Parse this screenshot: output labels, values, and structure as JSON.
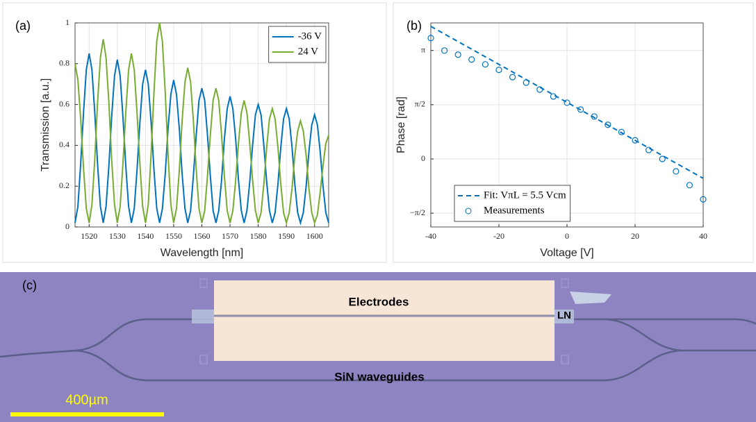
{
  "chart_data": [
    {
      "type": "line",
      "panel_label": "(a)",
      "xlabel": "Wavelength [nm]",
      "ylabel": "Transmission [a.u.]",
      "x": [
        1515,
        1516,
        1517,
        1518,
        1519,
        1520,
        1521,
        1522,
        1523,
        1524,
        1525,
        1526,
        1527,
        1528,
        1529,
        1530,
        1531,
        1532,
        1533,
        1534,
        1535,
        1536,
        1537,
        1538,
        1539,
        1540,
        1541,
        1542,
        1543,
        1544,
        1545,
        1546,
        1547,
        1548,
        1549,
        1550,
        1551,
        1552,
        1553,
        1554,
        1555,
        1556,
        1557,
        1558,
        1559,
        1560,
        1561,
        1562,
        1563,
        1564,
        1565,
        1566,
        1567,
        1568,
        1569,
        1570,
        1571,
        1572,
        1573,
        1574,
        1575,
        1576,
        1577,
        1578,
        1579,
        1580,
        1581,
        1582,
        1583,
        1584,
        1585,
        1586,
        1587,
        1588,
        1589,
        1590,
        1591,
        1592,
        1593,
        1594,
        1595,
        1596,
        1597,
        1598,
        1599,
        1600,
        1601,
        1602,
        1603,
        1604,
        1605
      ],
      "series": [
        {
          "name": "-36 V",
          "color": "#0072bd",
          "values": [
            0.02,
            0.1,
            0.31,
            0.56,
            0.77,
            0.85,
            0.77,
            0.56,
            0.31,
            0.1,
            0.02,
            0.1,
            0.3,
            0.54,
            0.74,
            0.82,
            0.74,
            0.54,
            0.3,
            0.1,
            0.02,
            0.09,
            0.28,
            0.51,
            0.7,
            0.77,
            0.7,
            0.51,
            0.28,
            0.09,
            0.02,
            0.09,
            0.26,
            0.48,
            0.65,
            0.72,
            0.65,
            0.48,
            0.26,
            0.09,
            0.02,
            0.08,
            0.25,
            0.45,
            0.62,
            0.68,
            0.62,
            0.45,
            0.25,
            0.08,
            0.02,
            0.08,
            0.23,
            0.43,
            0.58,
            0.64,
            0.58,
            0.43,
            0.23,
            0.08,
            0.02,
            0.08,
            0.22,
            0.4,
            0.55,
            0.6,
            0.55,
            0.4,
            0.22,
            0.08,
            0.02,
            0.07,
            0.21,
            0.39,
            0.53,
            0.58,
            0.53,
            0.39,
            0.21,
            0.07,
            0.02,
            0.07,
            0.2,
            0.37,
            0.5,
            0.55,
            0.5,
            0.37,
            0.2,
            0.07,
            0.02
          ]
        },
        {
          "name": "24 V",
          "color": "#77ac30",
          "values": [
            0.8,
            0.72,
            0.53,
            0.29,
            0.09,
            0.02,
            0.11,
            0.33,
            0.61,
            0.83,
            0.92,
            0.83,
            0.61,
            0.33,
            0.11,
            0.02,
            0.1,
            0.31,
            0.56,
            0.77,
            0.85,
            0.77,
            0.56,
            0.31,
            0.1,
            0.02,
            0.11,
            0.36,
            0.66,
            0.91,
            1.0,
            0.91,
            0.66,
            0.36,
            0.11,
            0.02,
            0.09,
            0.28,
            0.52,
            0.71,
            0.78,
            0.71,
            0.52,
            0.28,
            0.09,
            0.02,
            0.08,
            0.25,
            0.45,
            0.62,
            0.68,
            0.62,
            0.45,
            0.25,
            0.08,
            0.02,
            0.08,
            0.23,
            0.41,
            0.56,
            0.62,
            0.56,
            0.41,
            0.23,
            0.08,
            0.02,
            0.07,
            0.21,
            0.39,
            0.53,
            0.58,
            0.53,
            0.39,
            0.21,
            0.07,
            0.02,
            0.07,
            0.19,
            0.35,
            0.47,
            0.52,
            0.47,
            0.35,
            0.19,
            0.07,
            0.02,
            0.06,
            0.17,
            0.3,
            0.41,
            0.45
          ]
        }
      ],
      "xlim": [
        1515,
        1605
      ],
      "xticks": [
        1520,
        1530,
        1540,
        1550,
        1560,
        1570,
        1580,
        1590,
        1600
      ],
      "ylim": [
        0,
        1
      ],
      "yticks": [
        0,
        0.2,
        0.4,
        0.6,
        0.8,
        1
      ],
      "grid": true,
      "legend": "upper right"
    },
    {
      "type": "line",
      "panel_label": "(b)",
      "xlabel": "Voltage [V]",
      "ylabel": "Phase [rad]",
      "series": [
        {
          "name": "Fit: VπL = 5.5 Vcm",
          "color": "#0072bd",
          "style": "dashed",
          "x": [
            -40,
            40
          ],
          "values": [
            3.84,
            -0.56
          ]
        },
        {
          "name": "Measurements",
          "color": "#0072bd",
          "style": "none",
          "marker": "circle",
          "x": [
            -40,
            -36,
            -32,
            -28,
            -24,
            -20,
            -16,
            -12,
            -8,
            -4,
            0,
            4,
            8,
            12,
            16,
            20,
            24,
            28,
            32,
            36,
            40
          ],
          "values": [
            3.5,
            3.14,
            3.02,
            2.88,
            2.74,
            2.58,
            2.37,
            2.21,
            2.01,
            1.81,
            1.63,
            1.43,
            1.23,
            0.99,
            0.78,
            0.54,
            0.26,
            0.0,
            -0.36,
            -0.76,
            -1.17
          ]
        }
      ],
      "xlim": [
        -40,
        40
      ],
      "xticks": [
        -40,
        -20,
        0,
        20,
        40
      ],
      "ylim": [
        -1.97,
        3.94
      ],
      "yticks": [
        {
          "value": -1.5708,
          "label": "−π/2"
        },
        0,
        {
          "value": 1.5708,
          "label": "π/2"
        },
        {
          "value": 3.1416,
          "label": "π"
        }
      ],
      "grid": true,
      "legend": "lower left"
    }
  ],
  "micrograph": {
    "panel_label": "(c)",
    "electrodes": "Electrodes",
    "ln": "LN",
    "waveguides": "SiN waveguides",
    "scale_bar": "400µm"
  }
}
